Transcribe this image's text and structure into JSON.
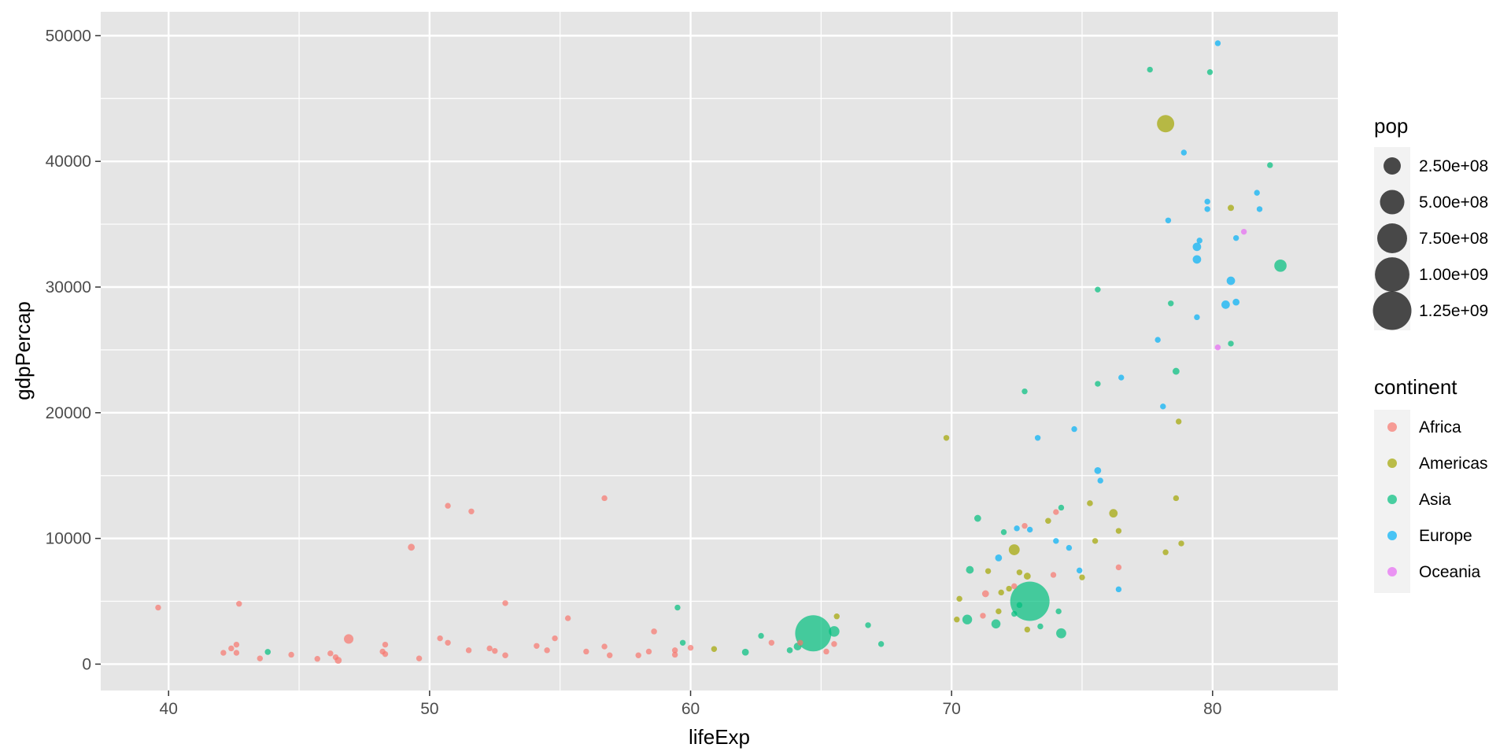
{
  "chart_data": {
    "type": "scatter",
    "title": "",
    "xlabel": "lifeExp",
    "ylabel": "gdpPercap",
    "xlim": [
      37.4,
      84.8
    ],
    "ylim": [
      -2100,
      51900
    ],
    "x_ticks": [
      40,
      50,
      60,
      70,
      80
    ],
    "y_ticks": [
      0,
      10000,
      20000,
      30000,
      40000,
      50000
    ],
    "x_tick_labels": [
      "40",
      "50",
      "60",
      "70",
      "80"
    ],
    "y_tick_labels": [
      "0",
      "10000",
      "20000",
      "30000",
      "40000",
      "50000"
    ],
    "grid": true,
    "panel_background": "#e5e5e5",
    "legend_placement": "right",
    "size_legend": {
      "title": "pop",
      "entries": [
        {
          "label": "2.50e+08",
          "value": 250000000
        },
        {
          "label": "5.00e+08",
          "value": 500000000
        },
        {
          "label": "7.50e+08",
          "value": 750000000
        },
        {
          "label": "1.00e+09",
          "value": 1000000000
        },
        {
          "label": "1.25e+09",
          "value": 1250000000
        }
      ]
    },
    "color_legend": {
      "title": "continent",
      "entries": [
        {
          "label": "Africa",
          "color": "#F8766D"
        },
        {
          "label": "Americas",
          "color": "#A3A500"
        },
        {
          "label": "Asia",
          "color": "#00BF7D"
        },
        {
          "label": "Europe",
          "color": "#00B0F6"
        },
        {
          "label": "Oceania",
          "color": "#E76BF3"
        }
      ]
    },
    "series": [
      {
        "name": "Africa",
        "color": "#F8766D",
        "points": [
          [
            39.6,
            4500,
            20000000
          ],
          [
            42.1,
            900,
            12000000
          ],
          [
            42.4,
            1250,
            8000000
          ],
          [
            42.6,
            900,
            10000000
          ],
          [
            42.6,
            1550,
            5000000
          ],
          [
            42.7,
            4800,
            15000000
          ],
          [
            43.5,
            450,
            15000000
          ],
          [
            44.7,
            750,
            5000000
          ],
          [
            45.7,
            420,
            5000000
          ],
          [
            46.2,
            850,
            15000000
          ],
          [
            46.4,
            550,
            10000000
          ],
          [
            46.5,
            300,
            40000000
          ],
          [
            46.9,
            2000,
            76000000
          ],
          [
            48.2,
            1000,
            12000000
          ],
          [
            48.3,
            1550,
            20000000
          ],
          [
            48.3,
            800,
            20000000
          ],
          [
            49.3,
            9300,
            40000000
          ],
          [
            49.6,
            450,
            10000000
          ],
          [
            50.4,
            2050,
            18000000
          ],
          [
            50.7,
            1700,
            15000000
          ],
          [
            50.7,
            12600,
            5000000
          ],
          [
            51.5,
            1100,
            22000000
          ],
          [
            51.6,
            12150,
            5000000
          ],
          [
            52.3,
            1250,
            20000000
          ],
          [
            52.5,
            1050,
            25000000
          ],
          [
            52.9,
            700,
            30000000
          ],
          [
            52.9,
            4850,
            5000000
          ],
          [
            54.1,
            1450,
            25000000
          ],
          [
            54.5,
            1100,
            18000000
          ],
          [
            54.8,
            2050,
            5000000
          ],
          [
            55.3,
            3650,
            10000000
          ],
          [
            56.0,
            1000,
            10000000
          ],
          [
            56.7,
            1400,
            12000000
          ],
          [
            56.7,
            13200,
            5000000
          ],
          [
            56.9,
            700,
            10000000
          ],
          [
            58.0,
            700,
            5000000
          ],
          [
            58.4,
            1000,
            5000000
          ],
          [
            58.6,
            2600,
            30000000
          ],
          [
            59.4,
            1100,
            10000000
          ],
          [
            59.4,
            750,
            10000000
          ],
          [
            60.0,
            1300,
            25000000
          ],
          [
            63.1,
            1700,
            15000000
          ],
          [
            64.2,
            1700,
            15000000
          ],
          [
            65.2,
            1000,
            5000000
          ],
          [
            65.5,
            1600,
            5000000
          ],
          [
            71.2,
            3850,
            22000000
          ],
          [
            71.3,
            5600,
            40000000
          ],
          [
            72.4,
            6200,
            25000000
          ],
          [
            72.8,
            11000,
            5000000
          ],
          [
            73.9,
            7100,
            15000000
          ],
          [
            74.0,
            12100,
            10000000
          ],
          [
            76.4,
            7700,
            5000000
          ]
        ]
      },
      {
        "name": "Americas",
        "color": "#A3A500",
        "points": [
          [
            60.9,
            1200,
            8000000
          ],
          [
            65.6,
            3800,
            10000000
          ],
          [
            69.8,
            18000,
            1000000
          ],
          [
            70.2,
            3550,
            12000000
          ],
          [
            70.3,
            5200,
            15000000
          ],
          [
            71.4,
            7400,
            15000000
          ],
          [
            71.8,
            4200,
            10000000
          ],
          [
            71.9,
            5700,
            15000000
          ],
          [
            72.2,
            6000,
            10000000
          ],
          [
            72.4,
            9100,
            100000000
          ],
          [
            72.6,
            7300,
            10000000
          ],
          [
            72.9,
            2750,
            10000000
          ],
          [
            72.9,
            7000,
            40000000
          ],
          [
            73.7,
            11400,
            30000000
          ],
          [
            75.0,
            6900,
            20000000
          ],
          [
            75.3,
            12800,
            30000000
          ],
          [
            75.5,
            9800,
            10000000
          ],
          [
            76.2,
            12000,
            60000000
          ],
          [
            76.4,
            10600,
            10000000
          ],
          [
            78.2,
            8900,
            15000000
          ],
          [
            78.2,
            43000,
            250000000
          ],
          [
            78.6,
            13200,
            15000000
          ],
          [
            78.7,
            19300,
            5000000
          ],
          [
            78.8,
            9600,
            5000000
          ],
          [
            80.7,
            36300,
            33000000
          ]
        ]
      },
      {
        "name": "Asia",
        "color": "#00BF7D",
        "points": [
          [
            43.8,
            970,
            30000000
          ],
          [
            59.5,
            4500,
            22000000
          ],
          [
            59.7,
            1700,
            25000000
          ],
          [
            62.1,
            950,
            40000000
          ],
          [
            62.7,
            2250,
            25000000
          ],
          [
            63.8,
            1100,
            30000000
          ],
          [
            64.1,
            1400,
            50000000
          ],
          [
            64.7,
            2450,
            1100000000
          ],
          [
            65.5,
            2600,
            95000000
          ],
          [
            66.8,
            3100,
            10000000
          ],
          [
            67.3,
            1600,
            28000000
          ],
          [
            70.6,
            3550,
            80000000
          ],
          [
            70.7,
            7500,
            50000000
          ],
          [
            71.0,
            11600,
            40000000
          ],
          [
            71.7,
            3200,
            70000000
          ],
          [
            72.0,
            10500,
            5000000
          ],
          [
            72.4,
            4000,
            25000000
          ],
          [
            72.6,
            4700,
            10000000
          ],
          [
            72.8,
            21700,
            20000000
          ],
          [
            73.0,
            5000,
            1300000000
          ],
          [
            73.4,
            3000,
            10000000
          ],
          [
            74.1,
            4200,
            25000000
          ],
          [
            74.2,
            12450,
            25000000
          ],
          [
            74.2,
            2450,
            85000000
          ],
          [
            75.6,
            22300,
            5000000
          ],
          [
            75.6,
            29800,
            5000000
          ],
          [
            77.6,
            47300,
            5000000
          ],
          [
            78.4,
            28700,
            25000000
          ],
          [
            78.6,
            23300,
            40000000
          ],
          [
            79.9,
            47100,
            5000000
          ],
          [
            80.7,
            25500,
            5000000
          ],
          [
            82.2,
            39700,
            5000000
          ],
          [
            82.6,
            31700,
            127000000
          ]
        ]
      },
      {
        "name": "Europe",
        "color": "#00B0F6",
        "points": [
          [
            71.8,
            8450,
            40000000
          ],
          [
            72.5,
            10800,
            20000000
          ],
          [
            73.0,
            10700,
            10000000
          ],
          [
            73.3,
            18000,
            20000000
          ],
          [
            74.0,
            9800,
            20000000
          ],
          [
            74.5,
            9250,
            10000000
          ],
          [
            74.7,
            18700,
            10000000
          ],
          [
            74.9,
            7450,
            10000000
          ],
          [
            75.6,
            15400,
            40000000
          ],
          [
            75.7,
            14600,
            10000000
          ],
          [
            76.4,
            5950,
            10000000
          ],
          [
            76.5,
            22800,
            20000000
          ],
          [
            77.9,
            25800,
            10000000
          ],
          [
            78.1,
            20500,
            20000000
          ],
          [
            78.3,
            35300,
            10000000
          ],
          [
            78.9,
            40700,
            10000000
          ],
          [
            79.4,
            27600,
            20000000
          ],
          [
            79.4,
            32200,
            60000000
          ],
          [
            79.4,
            33200,
            60000000
          ],
          [
            79.5,
            33700,
            20000000
          ],
          [
            79.8,
            36800,
            20000000
          ],
          [
            79.8,
            36200,
            20000000
          ],
          [
            80.2,
            49400,
            10000000
          ],
          [
            80.5,
            28600,
            60000000
          ],
          [
            80.7,
            30500,
            60000000
          ],
          [
            80.9,
            33900,
            20000000
          ],
          [
            80.9,
            28800,
            40000000
          ],
          [
            81.7,
            37500,
            20000000
          ],
          [
            81.8,
            36200,
            10000000
          ]
        ]
      },
      {
        "name": "Oceania",
        "color": "#E76BF3",
        "points": [
          [
            80.2,
            25200,
            10000000
          ],
          [
            81.2,
            34400,
            20000000
          ]
        ]
      }
    ]
  }
}
